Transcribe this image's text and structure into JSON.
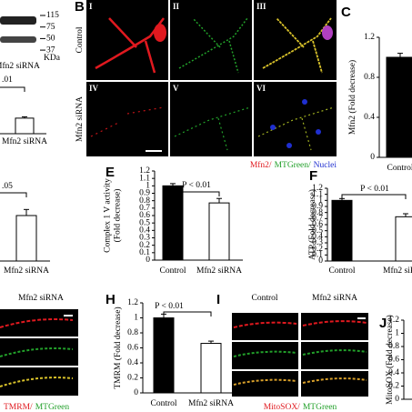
{
  "blot": {
    "markers": [
      115,
      75,
      50,
      37
    ],
    "unit": "KDa",
    "label": "Mfn2 siRNA"
  },
  "panel_B": {
    "letter": "B",
    "tiles": [
      "I",
      "II",
      "III",
      "IV",
      "V",
      "VI"
    ],
    "rows": [
      "Control",
      "Mfn2 siRNA"
    ],
    "legend": [
      {
        "text": "Mfn2/",
        "color": "#e0191f"
      },
      {
        "text": "MTGreen/",
        "color": "#22a02a"
      },
      {
        "text": "Nuclei",
        "color": "#1f2fd0"
      }
    ]
  },
  "panel_G": {
    "column": "Mfn2 siRNA",
    "legend": [
      {
        "text": "TMRM/",
        "color": "#e0191f"
      },
      {
        "text": "MTGreen",
        "color": "#22a02a"
      }
    ]
  },
  "panel_I": {
    "letter": "I",
    "columns": [
      "Control",
      "Mfn2 siRNA"
    ],
    "legend": [
      {
        "text": "MitoSOX/",
        "color": "#e0191f"
      },
      {
        "text": "MTGreen",
        "color": "#22a02a"
      }
    ]
  },
  "chart_data": [
    {
      "type": "bar",
      "categories": [
        "Mfn2 siRNA"
      ],
      "values": [
        0.36
      ],
      "errors": [
        0.03
      ],
      "colors": [
        "#ffffff"
      ],
      "ylim": [
        0,
        1.2
      ],
      "annotation": ".01"
    },
    {
      "type": "bar",
      "categories": [
        "Mfn2 siRNA"
      ],
      "values": [
        0.6
      ],
      "errors": [
        0.08
      ],
      "colors": [
        "#ffffff"
      ],
      "ylim": [
        0,
        1.2
      ],
      "annotation": ".05"
    },
    {
      "type": "bar",
      "label": "C",
      "ylabel": [
        "Mfn2 (Fold decrease)"
      ],
      "categories": [
        "Control"
      ],
      "values": [
        1.0
      ],
      "errors": [
        0.04
      ],
      "colors": [
        "#000000"
      ],
      "ylim": [
        0,
        1.2
      ],
      "yticks": [
        0,
        0.4,
        0.8,
        1.2
      ]
    },
    {
      "type": "bar",
      "label": "E",
      "ylabel": [
        "Complex 1 V activity",
        "(Fold decrease)"
      ],
      "categories": [
        "Control",
        "Mfn2 siRNA"
      ],
      "values": [
        1.0,
        0.77
      ],
      "errors": [
        0.03,
        0.06
      ],
      "colors": [
        "#000000",
        "#ffffff"
      ],
      "ylim": [
        0,
        1.2
      ],
      "yticks": [
        0,
        0.1,
        0.2,
        0.3,
        0.4,
        0.5,
        0.6,
        0.7,
        0.8,
        0.9,
        1,
        1.1,
        1.2
      ],
      "annotation": "P < 0.01"
    },
    {
      "type": "bar",
      "label": "F",
      "ylabel": [
        "ATP (Fold decrease)"
      ],
      "categories": [
        "Control",
        "Mfn2 siRNA"
      ],
      "values": [
        1.0,
        0.73
      ],
      "errors": [
        0.03,
        0.05
      ],
      "colors": [
        "#000000",
        "#ffffff"
      ],
      "ylim": [
        0,
        1.2
      ],
      "yticks": [
        0,
        0.1,
        0.2,
        0.3,
        0.4,
        0.5,
        0.6,
        0.7,
        0.8,
        0.9,
        1,
        1.1,
        1.2
      ],
      "annotation": "P < 0.01"
    },
    {
      "type": "bar",
      "label": "H",
      "ylabel": [
        "TMRM (Fold decrease)"
      ],
      "categories": [
        "Control",
        "Mfn2 siRNA"
      ],
      "values": [
        1.0,
        0.66
      ],
      "errors": [
        0.05,
        0.03
      ],
      "colors": [
        "#000000",
        "#ffffff"
      ],
      "ylim": [
        0,
        1.2
      ],
      "yticks": [
        0,
        0.2,
        0.4,
        0.6,
        0.8,
        1,
        1.2
      ],
      "annotation": "P < 0.01"
    },
    {
      "type": "bar",
      "label": "J",
      "ylabel": [
        "MitoSOX (Fold decrease)"
      ],
      "ylim": [
        0,
        1.2
      ],
      "yticks": [
        0,
        0.2,
        0.4,
        0.6,
        0.8,
        1,
        1.2
      ]
    }
  ]
}
